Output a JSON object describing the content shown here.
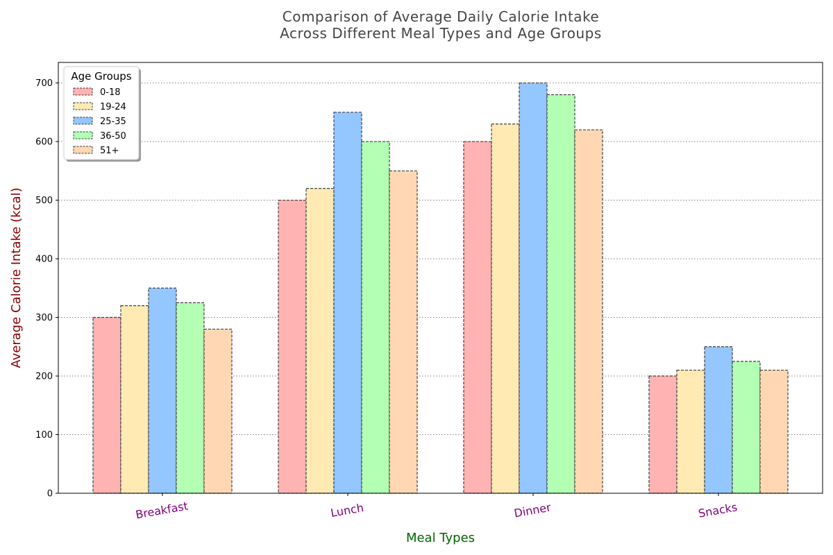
{
  "chart_data": {
    "type": "bar",
    "title": "Comparison of Average Daily Calorie Intake\nAcross Different Meal Types and Age Groups",
    "xlabel": "Meal Types",
    "ylabel": "Average Calorie Intake (kcal)",
    "categories": [
      "Breakfast",
      "Lunch",
      "Dinner",
      "Snacks"
    ],
    "ylim": [
      0,
      735
    ],
    "yticks": [
      0,
      100,
      200,
      300,
      400,
      500,
      600,
      700
    ],
    "grid": "horizontal dotted",
    "legend": {
      "title": "Age Groups",
      "placement": "top-left"
    },
    "series": [
      {
        "name": "0-18",
        "color": "#ffb3b3",
        "values": [
          300,
          500,
          600,
          200
        ]
      },
      {
        "name": "19-24",
        "color": "#ffeab3",
        "values": [
          320,
          520,
          630,
          210
        ]
      },
      {
        "name": "25-35",
        "color": "#94c6ff",
        "values": [
          350,
          650,
          700,
          250
        ]
      },
      {
        "name": "36-50",
        "color": "#b3ffb3",
        "values": [
          325,
          600,
          680,
          225
        ]
      },
      {
        "name": "51+",
        "color": "#ffd8b3",
        "values": [
          280,
          550,
          620,
          210
        ]
      }
    ]
  }
}
